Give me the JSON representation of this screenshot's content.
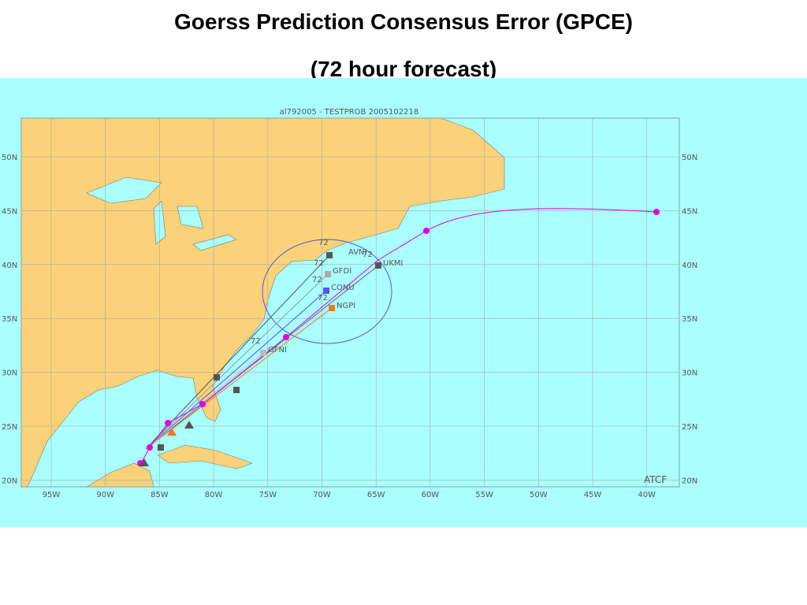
{
  "header": {
    "title": "Goerss Prediction Consensus Error (GPCE)",
    "subtitle": "(72 hour forecast)"
  },
  "map": {
    "title": "al792005 - TESTPROB  2005102218",
    "lat_labels": [
      "50N",
      "45N",
      "40N",
      "35N",
      "30N",
      "25N",
      "20N"
    ],
    "lon_labels": [
      "95W",
      "90W",
      "85W",
      "80W",
      "75W",
      "70W",
      "65W",
      "60W",
      "55W",
      "50W",
      "45W",
      "40W"
    ],
    "models": [
      {
        "name": "AVNI",
        "hour": "72"
      },
      {
        "name": "UKMI",
        "hour": "72"
      },
      {
        "name": "GFDI",
        "hour": "72"
      },
      {
        "name": "CONU",
        "hour": "72"
      },
      {
        "name": "NGPI",
        "hour": "72"
      },
      {
        "name": "GFNI",
        "hour": "72"
      }
    ],
    "credit": "ATCF"
  }
}
